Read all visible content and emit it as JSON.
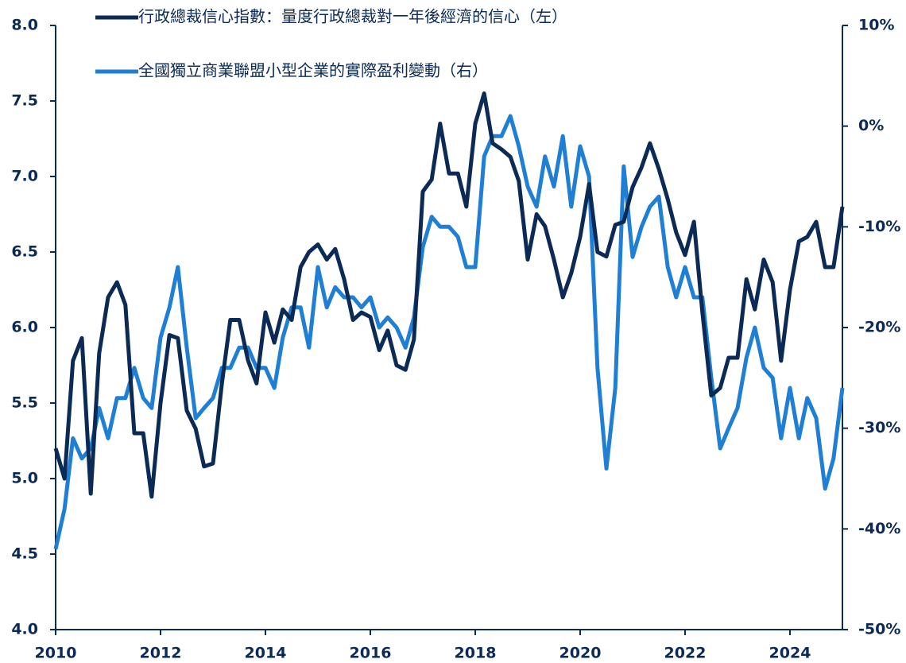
{
  "chart_data": {
    "type": "line",
    "legend": "top-left",
    "xlim": [
      2010,
      2025
    ],
    "xticks": [
      2010,
      2012,
      2014,
      2016,
      2018,
      2020,
      2022,
      2024
    ],
    "ylim": [
      4,
      8
    ],
    "yticks": [
      {
        "value": 4,
        "label": "4.0"
      },
      4.5,
      {
        "value": 5,
        "label": "5.0"
      },
      5.5,
      {
        "value": 6,
        "label": "6.0"
      },
      6.5,
      {
        "value": 7,
        "label": "7.0"
      },
      7.5,
      {
        "value": 8,
        "label": "8.0"
      }
    ],
    "y2lim": [
      -50,
      10
    ],
    "y2ticks": [
      {
        "value": -50,
        "label": "-50%"
      },
      {
        "value": -40,
        "label": "-40%"
      },
      {
        "value": -30,
        "label": "-30%"
      },
      {
        "value": -20,
        "label": "-20%"
      },
      {
        "value": -10,
        "label": "-10%"
      },
      {
        "value": 0,
        "label": "0%"
      },
      {
        "value": 10,
        "label": "10%"
      }
    ],
    "x": [
      2010,
      2010.17,
      2010.33,
      2010.5,
      2010.67,
      2010.83,
      2011,
      2011.17,
      2011.33,
      2011.5,
      2011.67,
      2011.83,
      2012,
      2012.17,
      2012.33,
      2012.5,
      2012.67,
      2012.83,
      2013,
      2013.17,
      2013.33,
      2013.5,
      2013.67,
      2013.83,
      2014,
      2014.17,
      2014.33,
      2014.5,
      2014.67,
      2014.83,
      2015,
      2015.17,
      2015.33,
      2015.5,
      2015.67,
      2015.83,
      2016,
      2016.17,
      2016.33,
      2016.5,
      2016.67,
      2016.83,
      2017,
      2017.17,
      2017.33,
      2017.5,
      2017.67,
      2017.83,
      2018,
      2018.17,
      2018.33,
      2018.5,
      2018.67,
      2018.83,
      2019,
      2019.17,
      2019.33,
      2019.5,
      2019.67,
      2019.83,
      2020,
      2020.17,
      2020.33,
      2020.5,
      2020.67,
      2020.83,
      2021,
      2021.17,
      2021.33,
      2021.5,
      2021.67,
      2021.83,
      2022,
      2022.17,
      2022.33,
      2022.5,
      2022.67,
      2022.83,
      2023,
      2023.17,
      2023.33,
      2023.5,
      2023.67,
      2023.83,
      2024,
      2024.17,
      2024.33,
      2024.5,
      2024.67,
      2024.83,
      2025
    ],
    "series": [
      {
        "name": "行政總裁信心指數：量度行政總裁對一年後經濟的信心（左）",
        "color": "#0b2a55",
        "axis": "y",
        "values": [
          5.2,
          5.0,
          5.78,
          5.93,
          4.9,
          5.83,
          6.2,
          6.3,
          6.15,
          5.3,
          5.3,
          4.88,
          5.5,
          5.95,
          5.93,
          5.45,
          5.33,
          5.08,
          5.1,
          5.63,
          6.05,
          6.05,
          5.78,
          5.63,
          6.1,
          5.9,
          6.12,
          6.05,
          6.4,
          6.5,
          6.55,
          6.45,
          6.52,
          6.32,
          6.05,
          6.1,
          6.07,
          5.85,
          5.98,
          5.75,
          5.72,
          5.92,
          6.9,
          6.98,
          7.35,
          7.02,
          7.02,
          6.8,
          7.35,
          7.55,
          7.22,
          7.18,
          7.13,
          6.97,
          6.45,
          6.75,
          6.67,
          6.45,
          6.2,
          6.36,
          6.6,
          6.95,
          6.5,
          6.47,
          6.68,
          6.7,
          6.93,
          7.06,
          7.22,
          7.05,
          6.85,
          6.63,
          6.48,
          6.7,
          6.1,
          5.55,
          5.6,
          5.8,
          5.8,
          6.32,
          6.12,
          6.45,
          6.3,
          5.78,
          6.25,
          6.57,
          6.6,
          6.7,
          6.4,
          6.4,
          6.8
        ]
      },
      {
        "name": "全國獨立商業聯盟小型企業的實際盈利變動（右）",
        "color": "#1f7fd4",
        "axis": "y2",
        "values": [
          -42,
          -38,
          -31,
          -33,
          -32,
          -28,
          -31,
          -27,
          -27,
          -24,
          -27,
          -28,
          -21,
          -18,
          -14,
          -22,
          -29,
          -28,
          -27,
          -24,
          -24,
          -22,
          -22,
          -24,
          -24,
          -26,
          -21,
          -18,
          -18,
          -22,
          -14,
          -18,
          -16,
          -17,
          -17,
          -18,
          -17,
          -20,
          -19,
          -20,
          -22,
          -19,
          -12,
          -9,
          -10,
          -10,
          -11,
          -14,
          -14,
          -3,
          -1,
          -1,
          1,
          -2,
          -6,
          -8,
          -3,
          -6,
          -1,
          -8,
          -2,
          -5,
          -24,
          -34,
          -26,
          -4,
          -13,
          -10,
          -8,
          -7,
          -14,
          -17,
          -14,
          -17,
          -17,
          -25,
          -32,
          -30,
          -28,
          -23,
          -20,
          -24,
          -25,
          -31,
          -26,
          -31,
          -27,
          -29,
          -36,
          -33,
          -26
        ]
      }
    ]
  }
}
